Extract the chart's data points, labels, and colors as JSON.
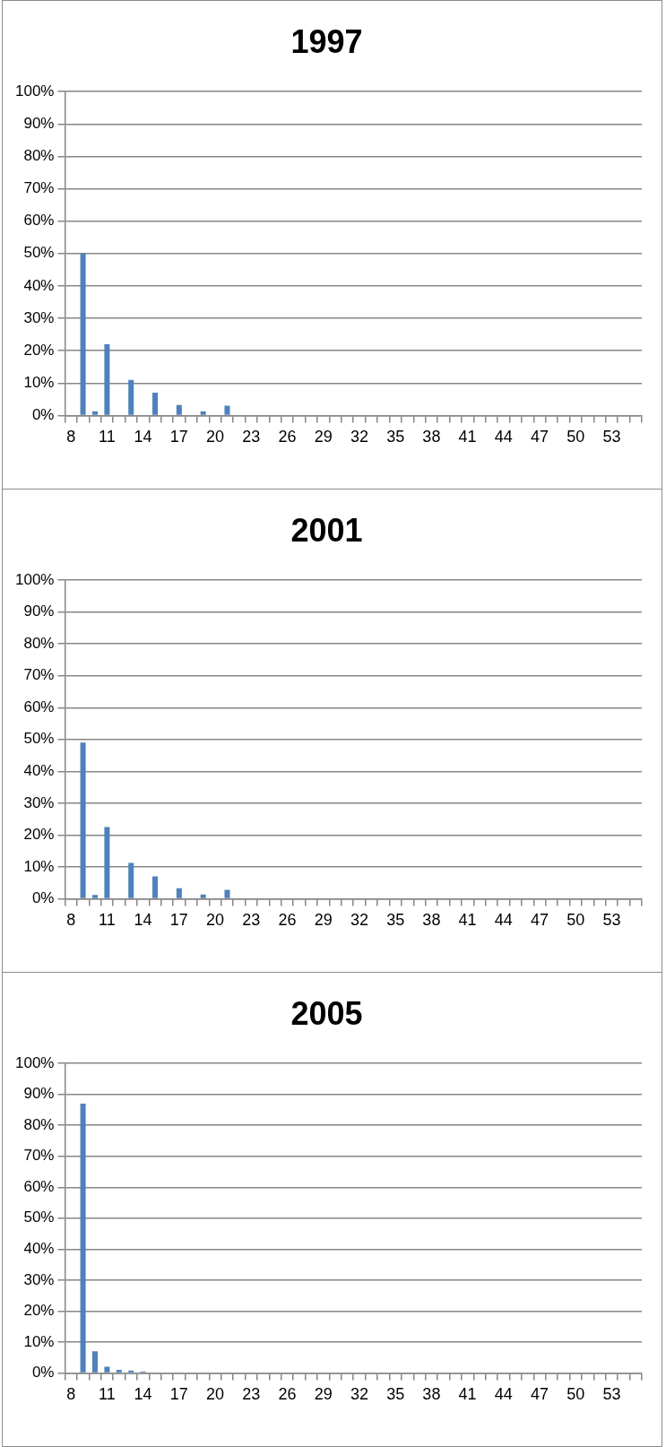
{
  "chart_data": [
    {
      "type": "bar",
      "title": "1997",
      "categories": [
        "8",
        null,
        null,
        "11",
        null,
        null,
        "14",
        null,
        null,
        "17",
        null,
        null,
        "20",
        null,
        null,
        "23",
        null,
        null,
        "26",
        null,
        null,
        "29",
        null,
        null,
        "32",
        null,
        null,
        "35",
        null,
        null,
        "38",
        null,
        null,
        "41",
        null,
        null,
        "44",
        null,
        null,
        "47",
        null,
        null,
        "50",
        null,
        null,
        "53",
        null,
        null
      ],
      "values": [
        0,
        50,
        1.3,
        22,
        0,
        11,
        0,
        7,
        0,
        3.2,
        0,
        1.3,
        0,
        3,
        0,
        0,
        0,
        0,
        0,
        0,
        0,
        0,
        0,
        0,
        0,
        0,
        0,
        0,
        0,
        0,
        0,
        0,
        0,
        0,
        0,
        0,
        0,
        0,
        0,
        0,
        0,
        0,
        0,
        0,
        0,
        0,
        0,
        0
      ],
      "color": "#4f81bd",
      "ylim": [
        0,
        100
      ],
      "yticks": [
        {
          "value": 0,
          "label": "0%"
        },
        {
          "value": 10,
          "label": "10%"
        },
        {
          "value": 20,
          "label": "20%"
        },
        {
          "value": 30,
          "label": "30%"
        },
        {
          "value": 40,
          "label": "40%"
        },
        {
          "value": 50,
          "label": "50%"
        },
        {
          "value": 60,
          "label": "60%"
        },
        {
          "value": 70,
          "label": "70%"
        },
        {
          "value": 80,
          "label": "80%"
        },
        {
          "value": 90,
          "label": "90%"
        },
        {
          "value": 100,
          "label": "100%"
        }
      ],
      "grid": "y",
      "legend": false
    },
    {
      "type": "bar",
      "title": "2001",
      "categories": [
        "8",
        null,
        null,
        "11",
        null,
        null,
        "14",
        null,
        null,
        "17",
        null,
        null,
        "20",
        null,
        null,
        "23",
        null,
        null,
        "26",
        null,
        null,
        "29",
        null,
        null,
        "32",
        null,
        null,
        "35",
        null,
        null,
        "38",
        null,
        null,
        "41",
        null,
        null,
        "44",
        null,
        null,
        "47",
        null,
        null,
        "50",
        null,
        null,
        "53",
        null,
        null
      ],
      "values": [
        0,
        49,
        1.2,
        22.5,
        0,
        11.2,
        0,
        7,
        0,
        3.3,
        0,
        1.3,
        0,
        2.8,
        0,
        0,
        0,
        0,
        0,
        0,
        0,
        0,
        0,
        0,
        0,
        0,
        0,
        0,
        0,
        0,
        0,
        0,
        0,
        0,
        0,
        0,
        0,
        0,
        0,
        0,
        0,
        0,
        0,
        0,
        0,
        0,
        0,
        0
      ],
      "color": "#4f81bd",
      "ylim": [
        0,
        100
      ],
      "yticks": [
        {
          "value": 0,
          "label": "0%"
        },
        {
          "value": 10,
          "label": "10%"
        },
        {
          "value": 20,
          "label": "20%"
        },
        {
          "value": 30,
          "label": "30%"
        },
        {
          "value": 40,
          "label": "40%"
        },
        {
          "value": 50,
          "label": "50%"
        },
        {
          "value": 60,
          "label": "60%"
        },
        {
          "value": 70,
          "label": "70%"
        },
        {
          "value": 80,
          "label": "80%"
        },
        {
          "value": 90,
          "label": "90%"
        },
        {
          "value": 100,
          "label": "100%"
        }
      ],
      "grid": "y",
      "legend": false
    },
    {
      "type": "bar",
      "title": "2005",
      "categories": [
        "8",
        null,
        null,
        "11",
        null,
        null,
        "14",
        null,
        null,
        "17",
        null,
        null,
        "20",
        null,
        null,
        "23",
        null,
        null,
        "26",
        null,
        null,
        "29",
        null,
        null,
        "32",
        null,
        null,
        "35",
        null,
        null,
        "38",
        null,
        null,
        "41",
        null,
        null,
        "44",
        null,
        null,
        "47",
        null,
        null,
        "50",
        null,
        null,
        "53",
        null,
        null
      ],
      "values": [
        0,
        87,
        7,
        2,
        1,
        0.8,
        0.5,
        0,
        0,
        0,
        0,
        0,
        0,
        0,
        0,
        0,
        0,
        0,
        0,
        0,
        0,
        0,
        0,
        0,
        0,
        0,
        0,
        0,
        0,
        0,
        0,
        0,
        0,
        0,
        0,
        0,
        0,
        0,
        0,
        0,
        0,
        0,
        0,
        0,
        0,
        0,
        0,
        0
      ],
      "color": "#4f81bd",
      "ylim": [
        0,
        100
      ],
      "yticks": [
        {
          "value": 0,
          "label": "0%"
        },
        {
          "value": 10,
          "label": "10%"
        },
        {
          "value": 20,
          "label": "20%"
        },
        {
          "value": 30,
          "label": "30%"
        },
        {
          "value": 40,
          "label": "40%"
        },
        {
          "value": 50,
          "label": "50%"
        },
        {
          "value": 60,
          "label": "60%"
        },
        {
          "value": 70,
          "label": "70%"
        },
        {
          "value": 80,
          "label": "80%"
        },
        {
          "value": 90,
          "label": "90%"
        },
        {
          "value": 100,
          "label": "100%"
        }
      ],
      "grid": "y",
      "legend": false
    }
  ]
}
